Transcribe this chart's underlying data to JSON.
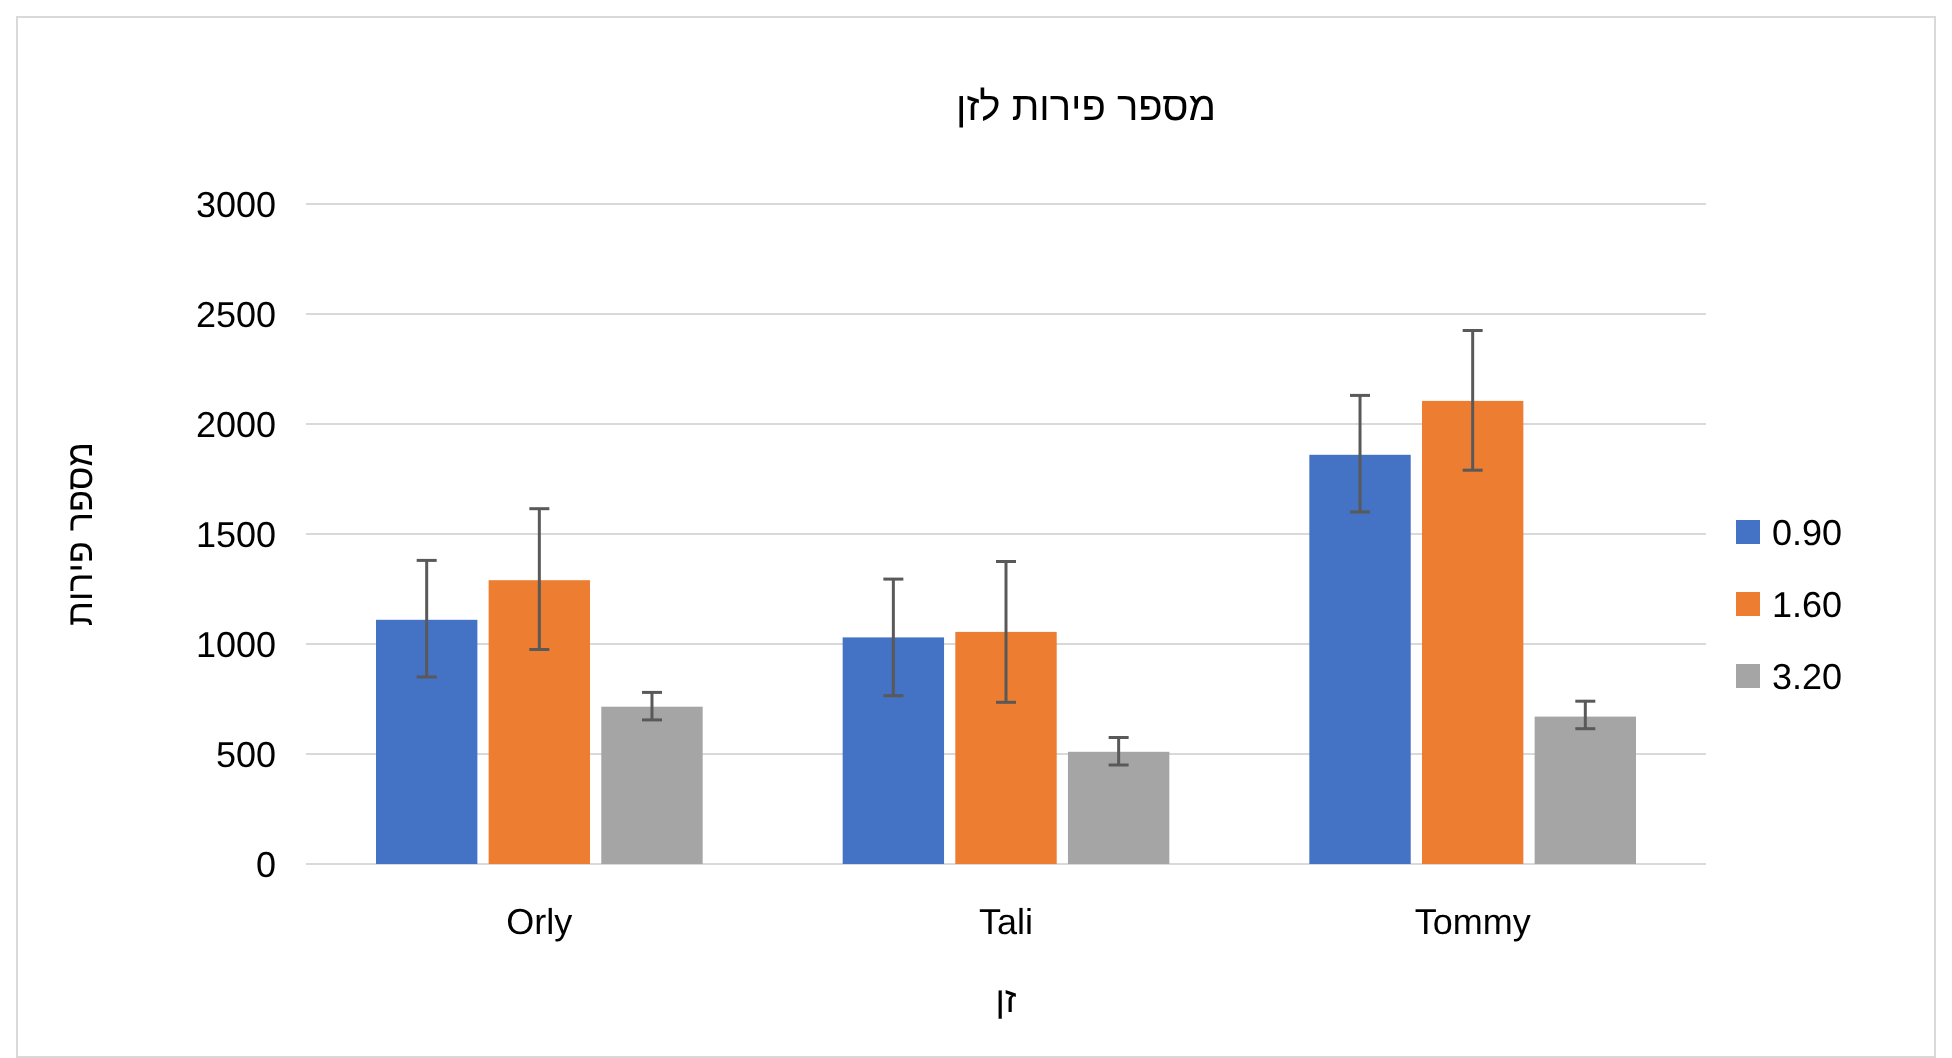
{
  "chart_data": {
    "type": "bar",
    "title": "מספר פירות לזן",
    "xlabel": "זן",
    "ylabel": "מספר פירות",
    "categories": [
      "Orly",
      "Tali",
      "Tommy"
    ],
    "series": [
      {
        "name": "0.90",
        "color": "#4472c4",
        "values": [
          1110,
          1030,
          1860
        ],
        "errors": [
          [
            850,
            1380
          ],
          [
            765,
            1295
          ],
          [
            1600,
            2130
          ]
        ]
      },
      {
        "name": "1.60",
        "color": "#ed7d31",
        "values": [
          1290,
          1055,
          2105
        ],
        "errors": [
          [
            975,
            1615
          ],
          [
            735,
            1375
          ],
          [
            1790,
            2425
          ]
        ]
      },
      {
        "name": "3.20",
        "color": "#a5a5a5",
        "values": [
          715,
          510,
          670
        ],
        "errors": [
          [
            655,
            780
          ],
          [
            450,
            575
          ],
          [
            615,
            740
          ]
        ]
      }
    ],
    "ylim": [
      0,
      3000
    ],
    "yticks": [
      0,
      500,
      1000,
      1500,
      2000,
      2500,
      3000
    ],
    "grid": "y",
    "legend": "right"
  }
}
